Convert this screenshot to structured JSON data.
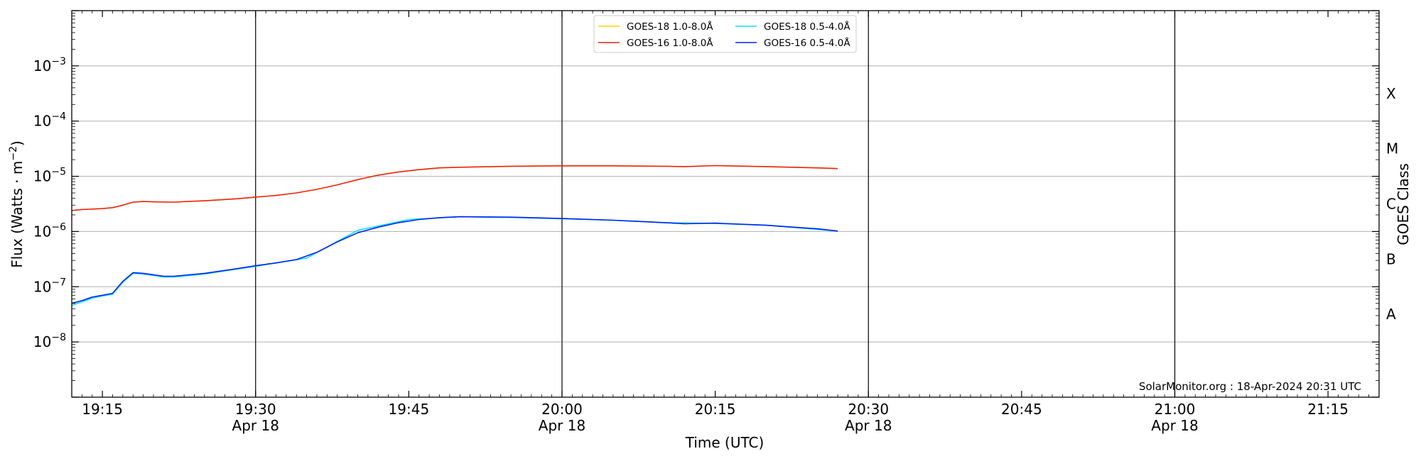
{
  "chart_data": {
    "type": "line",
    "xlabel": "Time (UTC)",
    "ylabel": "Flux (Watts · m⁻²)",
    "y2label": "GOES Class",
    "yscale": "log",
    "ylim": [
      1e-09,
      0.01
    ],
    "xlim": [
      "19:12",
      "21:20"
    ],
    "grid": "horizontal at decades",
    "legend_position": "top-center",
    "credit": "SolarMonitor.org : 18-Apr-2024 20:31 UTC",
    "x_ticks": [
      {
        "t": "19:15",
        "label": "19:15",
        "sub": ""
      },
      {
        "t": "19:30",
        "label": "19:30",
        "sub": "Apr 18"
      },
      {
        "t": "19:45",
        "label": "19:45",
        "sub": ""
      },
      {
        "t": "20:00",
        "label": "20:00",
        "sub": "Apr 18"
      },
      {
        "t": "20:15",
        "label": "20:15",
        "sub": ""
      },
      {
        "t": "20:30",
        "label": "20:30",
        "sub": "Apr 18"
      },
      {
        "t": "20:45",
        "label": "20:45",
        "sub": ""
      },
      {
        "t": "21:00",
        "label": "21:00",
        "sub": "Apr 18"
      },
      {
        "t": "21:15",
        "label": "21:15",
        "sub": ""
      }
    ],
    "vlines": [
      "19:30",
      "20:00",
      "20:30",
      "21:00"
    ],
    "y_ticks": [
      {
        "exp": -8,
        "label": "10",
        "sup": "−8"
      },
      {
        "exp": -7,
        "label": "10",
        "sup": "−7"
      },
      {
        "exp": -6,
        "label": "10",
        "sup": "−6"
      },
      {
        "exp": -5,
        "label": "10",
        "sup": "−5"
      },
      {
        "exp": -4,
        "label": "10",
        "sup": "−4"
      },
      {
        "exp": -3,
        "label": "10",
        "sup": "−3"
      }
    ],
    "goes_classes": [
      {
        "label": "A",
        "exp": -7.5
      },
      {
        "label": "B",
        "exp": -6.5
      },
      {
        "label": "C",
        "exp": -5.5
      },
      {
        "label": "M",
        "exp": -4.5
      },
      {
        "label": "X",
        "exp": -3.5
      }
    ],
    "series": [
      {
        "name": "GOES-18 1.0-8.0Å",
        "color": "#ffd400",
        "points": []
      },
      {
        "name": "GOES-18 0.5-4.0Å",
        "color": "#00e5ff",
        "points": [
          [
            "19:12",
            4.6e-08
          ],
          [
            "19:13",
            5.3e-08
          ],
          [
            "19:14",
            6.2e-08
          ],
          [
            "19:15",
            6.8e-08
          ],
          [
            "19:16",
            7.3e-08
          ],
          [
            "19:17",
            1.2e-07
          ],
          [
            "19:18",
            1.75e-07
          ],
          [
            "19:19",
            1.7e-07
          ],
          [
            "19:21",
            1.5e-07
          ],
          [
            "19:22",
            1.5e-07
          ],
          [
            "19:25",
            1.7e-07
          ],
          [
            "19:30",
            2.35e-07
          ],
          [
            "19:35",
            3.3e-07
          ],
          [
            "19:40",
            1.05e-06
          ],
          [
            "19:45",
            1.65e-06
          ],
          [
            "19:50",
            1.85e-06
          ],
          [
            "19:55",
            1.8e-06
          ],
          [
            "20:00",
            1.7e-06
          ],
          [
            "20:05",
            1.6e-06
          ],
          [
            "20:10",
            1.45e-06
          ],
          [
            "20:15",
            1.4e-06
          ],
          [
            "20:20",
            1.3e-06
          ],
          [
            "20:27",
            1.02e-06
          ]
        ]
      },
      {
        "name": "GOES-16 1.0-8.0Å",
        "color": "#ee2200",
        "points": [
          [
            "19:12",
            2.4e-06
          ],
          [
            "19:13",
            2.5e-06
          ],
          [
            "19:14",
            2.55e-06
          ],
          [
            "19:15",
            2.6e-06
          ],
          [
            "19:16",
            2.7e-06
          ],
          [
            "19:17",
            3e-06
          ],
          [
            "19:18",
            3.4e-06
          ],
          [
            "19:19",
            3.5e-06
          ],
          [
            "19:20",
            3.45e-06
          ],
          [
            "19:22",
            3.4e-06
          ],
          [
            "19:25",
            3.6e-06
          ],
          [
            "19:28",
            3.9e-06
          ],
          [
            "19:30",
            4.2e-06
          ],
          [
            "19:32",
            4.5e-06
          ],
          [
            "19:34",
            5e-06
          ],
          [
            "19:36",
            5.8e-06
          ],
          [
            "19:38",
            7e-06
          ],
          [
            "19:40",
            8.7e-06
          ],
          [
            "19:42",
            1.05e-05
          ],
          [
            "19:44",
            1.2e-05
          ],
          [
            "19:46",
            1.32e-05
          ],
          [
            "19:48",
            1.42e-05
          ],
          [
            "19:50",
            1.46e-05
          ],
          [
            "19:55",
            1.52e-05
          ],
          [
            "20:00",
            1.55e-05
          ],
          [
            "20:05",
            1.55e-05
          ],
          [
            "20:10",
            1.52e-05
          ],
          [
            "20:12",
            1.5e-05
          ],
          [
            "20:15",
            1.56e-05
          ],
          [
            "20:20",
            1.5e-05
          ],
          [
            "20:25",
            1.42e-05
          ],
          [
            "20:27",
            1.38e-05
          ]
        ]
      },
      {
        "name": "GOES-16 0.5-4.0Å",
        "color": "#0022ee",
        "points": [
          [
            "19:12",
            5e-08
          ],
          [
            "19:13",
            5.6e-08
          ],
          [
            "19:14",
            6.5e-08
          ],
          [
            "19:15",
            7e-08
          ],
          [
            "19:16",
            7.6e-08
          ],
          [
            "19:17",
            1.25e-07
          ],
          [
            "19:18",
            1.8e-07
          ],
          [
            "19:19",
            1.75e-07
          ],
          [
            "19:20",
            1.65e-07
          ],
          [
            "19:21",
            1.55e-07
          ],
          [
            "19:22",
            1.55e-07
          ],
          [
            "19:25",
            1.75e-07
          ],
          [
            "19:28",
            2.1e-07
          ],
          [
            "19:30",
            2.4e-07
          ],
          [
            "19:32",
            2.7e-07
          ],
          [
            "19:34",
            3.1e-07
          ],
          [
            "19:36",
            4.2e-07
          ],
          [
            "19:38",
            6.5e-07
          ],
          [
            "19:40",
            9.5e-07
          ],
          [
            "19:42",
            1.2e-06
          ],
          [
            "19:44",
            1.45e-06
          ],
          [
            "19:46",
            1.65e-06
          ],
          [
            "19:48",
            1.78e-06
          ],
          [
            "19:50",
            1.85e-06
          ],
          [
            "19:55",
            1.82e-06
          ],
          [
            "20:00",
            1.72e-06
          ],
          [
            "20:05",
            1.6e-06
          ],
          [
            "20:10",
            1.45e-06
          ],
          [
            "20:12",
            1.38e-06
          ],
          [
            "20:15",
            1.42e-06
          ],
          [
            "20:20",
            1.3e-06
          ],
          [
            "20:25",
            1.12e-06
          ],
          [
            "20:27",
            1.02e-06
          ]
        ]
      }
    ]
  }
}
